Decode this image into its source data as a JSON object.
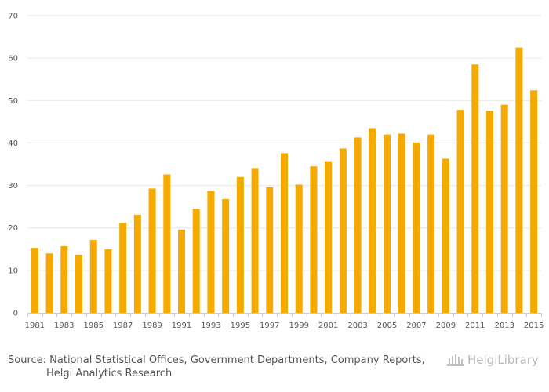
{
  "colors": {
    "bar": "#F5AA00",
    "grid": "#e6e6e6",
    "axis": "#cccccc",
    "text": "#555555",
    "logo": "#b9b9b9"
  },
  "source_text": {
    "line1": "Source: National Statistical Offices, Government Departments, Company Reports,",
    "line2": "Helgi Analytics Research"
  },
  "brand": {
    "name": "HelgiLibrary"
  },
  "chart_data": {
    "type": "bar",
    "title": "",
    "xlabel": "",
    "ylabel": "",
    "ylim": [
      0,
      70
    ],
    "yticks": [
      0,
      10,
      20,
      30,
      40,
      50,
      60,
      70
    ],
    "grid": true,
    "categories": [
      "1981",
      "1982",
      "1983",
      "1984",
      "1985",
      "1986",
      "1987",
      "1988",
      "1989",
      "1990",
      "1991",
      "1992",
      "1993",
      "1994",
      "1995",
      "1996",
      "1997",
      "1998",
      "1999",
      "2000",
      "2001",
      "2002",
      "2003",
      "2004",
      "2005",
      "2006",
      "2007",
      "2008",
      "2009",
      "2010",
      "2011",
      "2012",
      "2013",
      "2014",
      "2015"
    ],
    "xtick_labels": [
      "1981",
      "1983",
      "1985",
      "1987",
      "1989",
      "1991",
      "1993",
      "1995",
      "1997",
      "1999",
      "2001",
      "2003",
      "2005",
      "2007",
      "2009",
      "2011",
      "2013",
      "2015"
    ],
    "values": [
      15.3,
      14.0,
      15.7,
      13.7,
      17.2,
      15.0,
      21.2,
      23.1,
      29.3,
      32.6,
      19.6,
      24.5,
      28.7,
      26.8,
      32.0,
      34.1,
      29.6,
      37.6,
      30.2,
      34.5,
      35.7,
      38.7,
      41.3,
      43.5,
      42.0,
      42.2,
      40.1,
      42.0,
      36.3,
      47.8,
      58.5,
      47.6,
      49.0,
      62.5,
      52.4
    ]
  }
}
